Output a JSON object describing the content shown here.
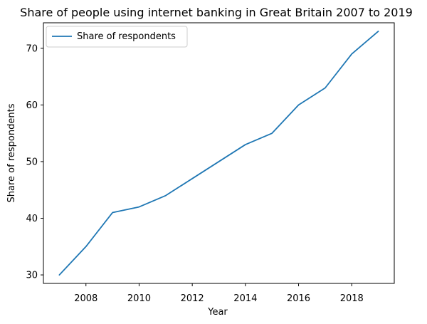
{
  "chart_data": {
    "type": "line",
    "title": "Share of people using internet banking in Great Britain 2007 to 2019",
    "xlabel": "Year",
    "ylabel": "Share of respondents",
    "xlim": [
      2006.4,
      2019.6
    ],
    "ylim": [
      28.5,
      74.5
    ],
    "xticks": [
      2008,
      2010,
      2012,
      2014,
      2016,
      2018
    ],
    "yticks": [
      30,
      40,
      50,
      60,
      70
    ],
    "grid": false,
    "legend": "top-left",
    "series": [
      {
        "name": "Share of respondents",
        "color": "#1f77b4",
        "x": [
          2007,
          2008,
          2009,
          2010,
          2011,
          2012,
          2013,
          2014,
          2015,
          2016,
          2017,
          2018,
          2019
        ],
        "y": [
          30,
          35,
          41,
          42,
          44,
          47,
          50,
          53,
          55,
          60,
          63,
          69,
          73
        ]
      }
    ]
  }
}
